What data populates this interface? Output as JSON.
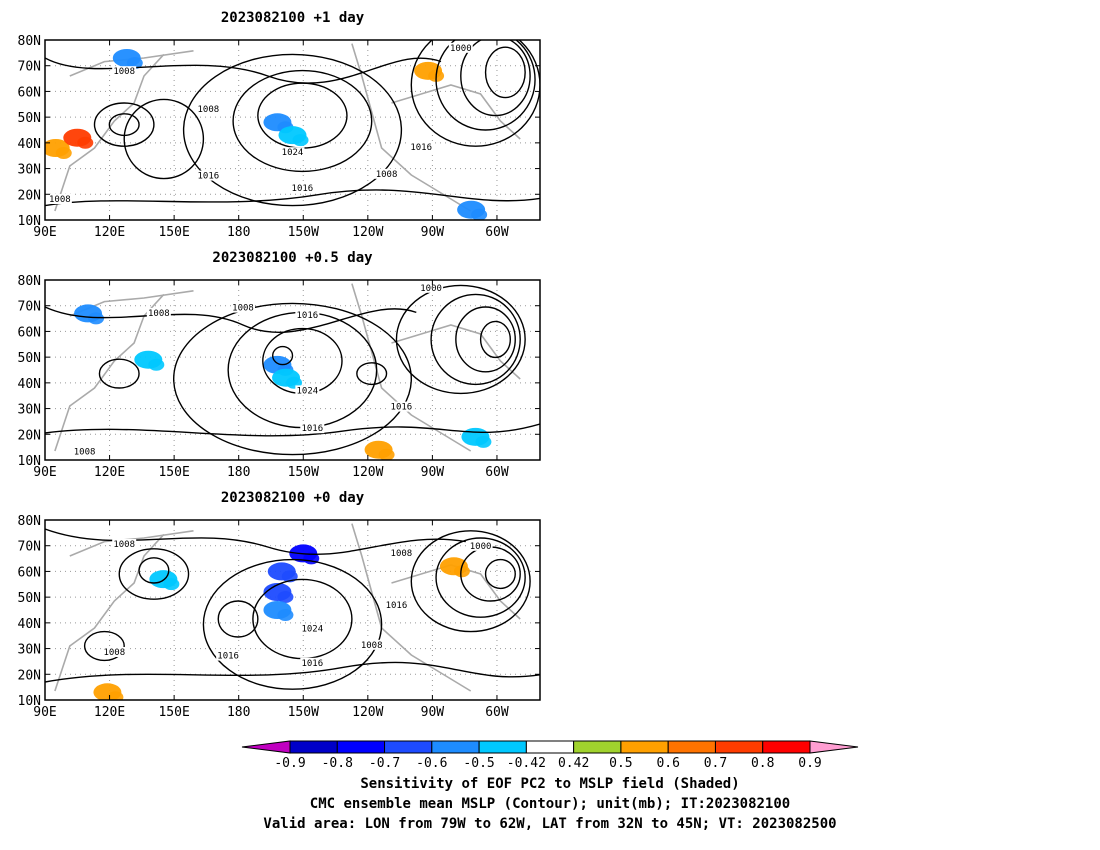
{
  "chart_data": [
    {
      "type": "heatmap",
      "title": "2023082100  +1 day",
      "ylim": [
        10,
        80
      ],
      "yticks": [
        "80N",
        "70N",
        "60N",
        "50N",
        "40N",
        "30N",
        "20N",
        "10N"
      ],
      "xticks": [
        "90E",
        "120E",
        "150E",
        "180",
        "150W",
        "120W",
        "90W",
        "60W"
      ],
      "contour_labels": [
        "1000",
        "1008",
        "1008",
        "1008",
        "1016",
        "1016",
        "1016",
        "1024",
        "1008"
      ],
      "shaded_regions": [
        {
          "lon": 128,
          "lat": 73,
          "value": -0.6
        },
        {
          "lon": 198,
          "lat": 48,
          "value": -0.6
        },
        {
          "lon": 205,
          "lat": 43,
          "value": -0.5
        },
        {
          "lon": 288,
          "lat": 14,
          "value": -0.6
        },
        {
          "lon": 95,
          "lat": 38,
          "value": 0.5
        },
        {
          "lon": 105,
          "lat": 42,
          "value": 0.7
        },
        {
          "lon": 268,
          "lat": 68,
          "value": 0.5
        }
      ]
    },
    {
      "type": "heatmap",
      "title": "2023082100  +0.5 day",
      "ylim": [
        10,
        80
      ],
      "yticks": [
        "80N",
        "70N",
        "60N",
        "50N",
        "40N",
        "30N",
        "20N",
        "10N"
      ],
      "xticks": [
        "90E",
        "120E",
        "150E",
        "180",
        "150W",
        "120W",
        "90W",
        "60W"
      ],
      "contour_labels": [
        "1000",
        "1008",
        "1008",
        "1016",
        "1024",
        "1016",
        "1016",
        "1008"
      ],
      "shaded_regions": [
        {
          "lon": 110,
          "lat": 67,
          "value": -0.6
        },
        {
          "lon": 198,
          "lat": 47,
          "value": -0.6
        },
        {
          "lon": 202,
          "lat": 42,
          "value": -0.5
        },
        {
          "lon": 138,
          "lat": 49,
          "value": -0.5
        },
        {
          "lon": 290,
          "lat": 19,
          "value": -0.5
        },
        {
          "lon": 245,
          "lat": 14,
          "value": 0.5
        }
      ]
    },
    {
      "type": "heatmap",
      "title": "2023082100  +0 day",
      "ylim": [
        10,
        80
      ],
      "yticks": [
        "80N",
        "70N",
        "60N",
        "50N",
        "40N",
        "30N",
        "20N",
        "10N"
      ],
      "xticks": [
        "90E",
        "120E",
        "150E",
        "180",
        "150W",
        "120W",
        "90W",
        "60W"
      ],
      "contour_labels": [
        "1008",
        "1008",
        "1000",
        "1016",
        "1024",
        "1016",
        "1016",
        "1008",
        "1008"
      ],
      "shaded_regions": [
        {
          "lon": 210,
          "lat": 67,
          "value": -0.8
        },
        {
          "lon": 200,
          "lat": 60,
          "value": -0.7
        },
        {
          "lon": 198,
          "lat": 52,
          "value": -0.7
        },
        {
          "lon": 198,
          "lat": 45,
          "value": -0.6
        },
        {
          "lon": 145,
          "lat": 57,
          "value": -0.5
        },
        {
          "lon": 280,
          "lat": 62,
          "value": 0.5
        },
        {
          "lon": 119,
          "lat": 13,
          "value": 0.5
        }
      ]
    }
  ],
  "colorbar": {
    "ticks": [
      "-0.9",
      "-0.8",
      "-0.7",
      "-0.6",
      "-0.5",
      "-0.42",
      "0.42",
      "0.5",
      "0.6",
      "0.7",
      "0.8",
      "0.9"
    ],
    "colors": [
      "#c000c0",
      "#0000c8",
      "#0000ff",
      "#1e4bff",
      "#1e8cff",
      "#00c8ff",
      "#ffffff",
      "#a0d22d",
      "#ffa000",
      "#ff7300",
      "#ff3c00",
      "#ff0000",
      "#ff9ed2"
    ]
  },
  "caption": {
    "line1": "Sensitivity of EOF PC2 to MSLP field (Shaded)",
    "line2": "CMC ensemble mean MSLP (Contour); unit(mb); IT:2023082100",
    "line3": "Valid area: LON from 79W to 62W, LAT from 32N to 45N; VT: 2023082500"
  }
}
